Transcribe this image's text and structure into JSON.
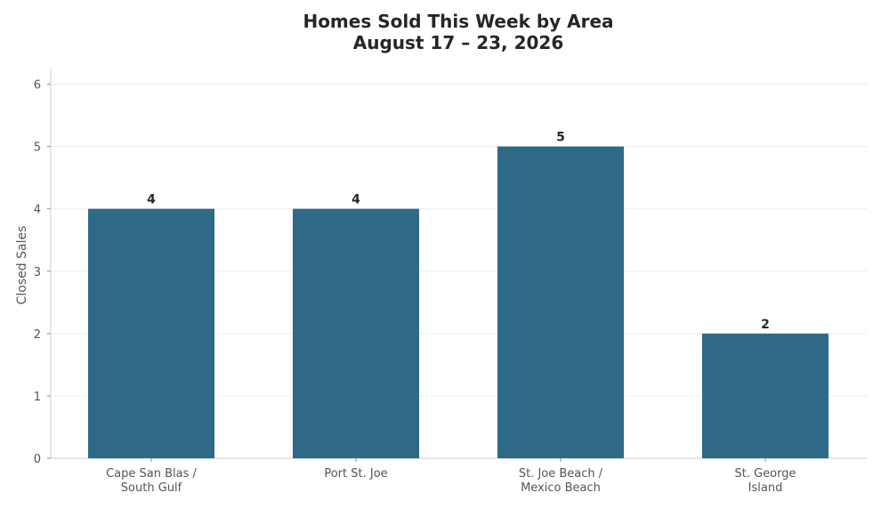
{
  "chart_data": {
    "type": "bar",
    "title": "Homes Sold This Week by Area",
    "subtitle": "August 17 – 23, 2026",
    "xlabel": "",
    "ylabel": "Closed Sales",
    "categories": [
      [
        "Cape San Blas /",
        "South Gulf"
      ],
      [
        "Port St. Joe"
      ],
      [
        "St. Joe Beach /",
        "Mexico Beach"
      ],
      [
        "St. George",
        "Island"
      ]
    ],
    "values": [
      4,
      4,
      5,
      2
    ],
    "ylim": [
      0,
      6.25
    ],
    "yticks": [
      0,
      1,
      2,
      3,
      4,
      5,
      6
    ],
    "grid": "horizontal",
    "bar_color": "#2e6a88",
    "data_labels": true
  }
}
